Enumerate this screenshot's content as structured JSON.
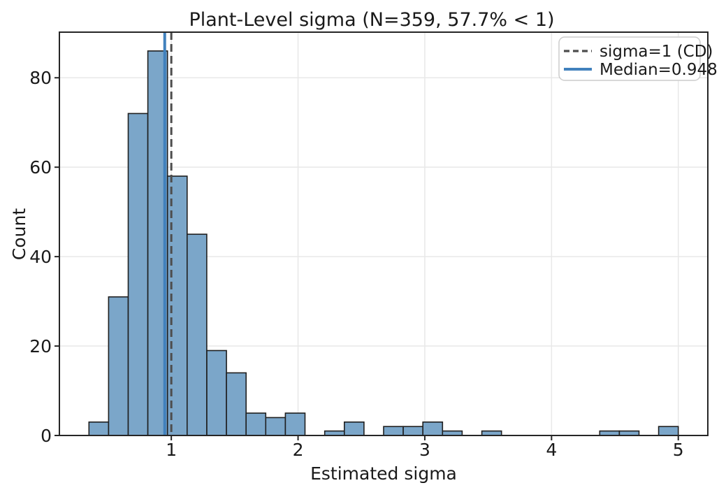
{
  "chart_data": {
    "type": "bar",
    "subtype": "histogram",
    "title": "Plant-Level sigma (N=359, 57.7% < 1)",
    "xlabel": "Estimated sigma",
    "ylabel": "Count",
    "bin_start": 0.35,
    "bin_width": 0.155,
    "counts": [
      3,
      31,
      72,
      86,
      58,
      45,
      19,
      14,
      5,
      4,
      5,
      0,
      1,
      3,
      0,
      2,
      2,
      3,
      1,
      0,
      1,
      0,
      0,
      0,
      0,
      0,
      1,
      1,
      0,
      2
    ],
    "total_n": 359,
    "xticks": [
      1,
      2,
      3,
      4,
      5
    ],
    "yticks": [
      0,
      20,
      40,
      60,
      80
    ],
    "xlim": [
      0.117,
      5.233
    ],
    "ylim": [
      0,
      90.2
    ],
    "grid": true,
    "legend_position": "upper right",
    "vlines": [
      {
        "name": "sigma-1-cd",
        "value": 1.0,
        "style": "dashed",
        "color": "#4d4d4d",
        "label": "sigma=1 (CD)"
      },
      {
        "name": "median",
        "value": 0.948,
        "style": "solid",
        "color": "#4181bd",
        "label": "Median=0.948"
      }
    ],
    "colors": {
      "bar_fill": "#7ba6c9",
      "bar_edge": "#1f1f1f",
      "grid": "#e8e8e8",
      "axis": "#262626",
      "legend_border": "#cccccc",
      "background": "#ffffff"
    }
  }
}
